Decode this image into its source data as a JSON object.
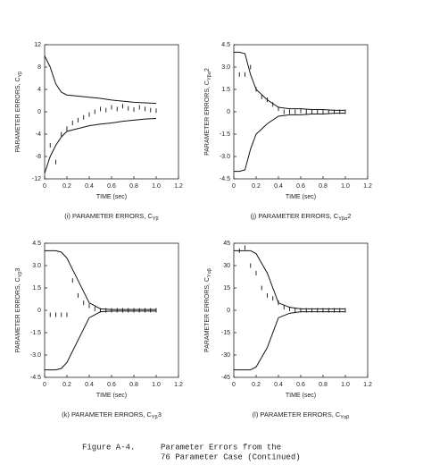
{
  "chart_data": [
    {
      "type": "line",
      "ylabel": "PARAMETER ERRORS, C",
      "ylabel_sub": "Yβ",
      "xlabel": "TIME (sec)",
      "caption": "(i) PARAMETER ERRORS, C",
      "caption_sub": "Yβ",
      "xlim": [
        0,
        1.2
      ],
      "xticks": [
        0,
        0.2,
        0.4,
        0.6,
        0.8,
        {
          "value": 1,
          "label": "1.0"
        },
        1.2
      ],
      "ylim": [
        -12,
        12
      ],
      "yticks": [
        -12,
        -8,
        -4,
        0,
        4,
        8,
        12
      ],
      "series": [
        {
          "style": "line",
          "color": "#111",
          "x": [
            0,
            0.05,
            0.1,
            0.15,
            0.2,
            0.3,
            0.4,
            0.5,
            0.6,
            0.7,
            0.8,
            0.9,
            1.0
          ],
          "values": [
            10,
            8,
            5,
            3.5,
            3,
            2.8,
            2.6,
            2.4,
            2.1,
            1.9,
            1.7,
            1.6,
            1.5
          ]
        },
        {
          "style": "line",
          "color": "#111",
          "x": [
            0,
            0.05,
            0.1,
            0.15,
            0.2,
            0.3,
            0.4,
            0.5,
            0.6,
            0.7,
            0.8,
            0.9,
            1.0
          ],
          "values": [
            -11,
            -8,
            -6,
            -4.5,
            -3.5,
            -3,
            -2.5,
            -2.2,
            -2,
            -1.7,
            -1.5,
            -1.3,
            -1.2
          ]
        },
        {
          "style": "points",
          "color": "#111",
          "x": [
            0.05,
            0.1,
            0.15,
            0.2,
            0.25,
            0.3,
            0.35,
            0.4,
            0.45,
            0.5,
            0.55,
            0.6,
            0.65,
            0.7,
            0.75,
            0.8,
            0.85,
            0.9,
            0.95,
            1.0
          ],
          "values": [
            -6,
            -9,
            -4,
            -3,
            -2,
            -1.5,
            -1,
            -0.5,
            0,
            0.5,
            0.3,
            0.8,
            0.5,
            1,
            0.6,
            0.4,
            0.8,
            0.5,
            0.3,
            0.2
          ]
        }
      ]
    },
    {
      "type": "line",
      "ylabel": "PARAMETER ERRORS, C",
      "ylabel_sub": "Yβα",
      "ylabel_tail": "2",
      "xlabel": "TIME (sec)",
      "caption": "(j) PARAMETER ERRORS, C",
      "caption_sub": "Yβα",
      "caption_tail": "2",
      "xlim": [
        0,
        1.2
      ],
      "xticks": [
        0,
        0.2,
        0.4,
        0.6,
        0.8,
        {
          "value": 1,
          "label": "1.0"
        },
        1.2
      ],
      "ylim": [
        -4.5,
        4.5
      ],
      "yticks": [
        -4.5,
        {
          "value": -3,
          "label": "-3.0"
        },
        -1.5,
        0,
        1.5,
        {
          "value": 3,
          "label": "3.0"
        },
        4.5
      ],
      "series": [
        {
          "style": "line",
          "color": "#111",
          "x": [
            0,
            0.05,
            0.1,
            0.15,
            0.2,
            0.3,
            0.4,
            0.5,
            0.6,
            0.7,
            0.8,
            0.9,
            1.0
          ],
          "values": [
            4,
            4,
            3.9,
            2.5,
            1.5,
            0.8,
            0.3,
            0.2,
            0.2,
            0.15,
            0.15,
            0.1,
            0.1
          ]
        },
        {
          "style": "line",
          "color": "#111",
          "x": [
            0,
            0.05,
            0.1,
            0.15,
            0.2,
            0.3,
            0.4,
            0.5,
            0.6,
            0.7,
            0.8,
            0.9,
            1.0
          ],
          "values": [
            -4,
            -4,
            -3.9,
            -2.5,
            -1.5,
            -0.8,
            -0.3,
            -0.2,
            -0.2,
            -0.15,
            -0.15,
            -0.1,
            -0.1
          ]
        },
        {
          "style": "points",
          "color": "#111",
          "x": [
            0.05,
            0.1,
            0.15,
            0.2,
            0.25,
            0.3,
            0.35,
            0.4,
            0.45,
            0.5,
            0.55,
            0.6,
            0.65,
            0.7,
            0.75,
            0.8,
            0.85,
            0.9,
            0.95,
            1.0
          ],
          "values": [
            2.5,
            2.5,
            3,
            1.5,
            1,
            0.8,
            0.5,
            0.2,
            0,
            0,
            0,
            0.05,
            0,
            0,
            0,
            0,
            0,
            0,
            0,
            0
          ]
        }
      ]
    },
    {
      "type": "line",
      "ylabel": "PARAMETER ERRORS, C",
      "ylabel_sub": "Yβ",
      "ylabel_tail": "3",
      "xlabel": "TIME (sec)",
      "caption": "(k) PARAMETER ERRORS, C",
      "caption_sub": "Yβ",
      "caption_tail": "3",
      "xlim": [
        0,
        1.2
      ],
      "xticks": [
        0,
        0.2,
        0.4,
        0.6,
        0.8,
        {
          "value": 1,
          "label": "1.0"
        },
        1.2
      ],
      "ylim": [
        -4.5,
        4.5
      ],
      "yticks": [
        -4.5,
        {
          "value": -3,
          "label": "-3.0"
        },
        -1.5,
        0,
        1.5,
        {
          "value": 3,
          "label": "3.0"
        },
        4.5
      ],
      "series": [
        {
          "style": "line",
          "color": "#111",
          "x": [
            0,
            0.05,
            0.1,
            0.15,
            0.2,
            0.3,
            0.4,
            0.5,
            0.6,
            0.7,
            0.8,
            0.9,
            1.0
          ],
          "values": [
            4,
            4,
            4,
            3.9,
            3.5,
            2,
            0.5,
            0.1,
            0.05,
            0.05,
            0.05,
            0.05,
            0.05
          ]
        },
        {
          "style": "line",
          "color": "#111",
          "x": [
            0,
            0.05,
            0.1,
            0.15,
            0.2,
            0.3,
            0.4,
            0.5,
            0.6,
            0.7,
            0.8,
            0.9,
            1.0
          ],
          "values": [
            -4,
            -4,
            -4,
            -3.9,
            -3.5,
            -2,
            -0.5,
            -0.1,
            -0.05,
            -0.05,
            -0.05,
            -0.05,
            -0.05
          ]
        },
        {
          "style": "points",
          "color": "#111",
          "x": [
            0.05,
            0.1,
            0.15,
            0.2,
            0.25,
            0.3,
            0.35,
            0.4,
            0.45,
            0.5,
            0.55,
            0.6,
            0.65,
            0.7,
            0.75,
            0.8,
            0.85,
            0.9,
            0.95,
            1.0
          ],
          "values": [
            -0.3,
            -0.3,
            -0.3,
            -0.3,
            2,
            1,
            0.5,
            0.3,
            0.1,
            0,
            0,
            0,
            0,
            0,
            0,
            0,
            0,
            0,
            0,
            0
          ]
        }
      ]
    },
    {
      "type": "line",
      "ylabel": "PARAMETER ERRORS, C",
      "ylabel_sub": "Yαβ",
      "xlabel": "TIME (sec)",
      "caption": "(l) PARAMETER ERRORS, C",
      "caption_sub": "Yαβ",
      "xlim": [
        0,
        1.2
      ],
      "xticks": [
        0,
        0.2,
        0.4,
        0.6,
        0.8,
        {
          "value": 1,
          "label": "1.0"
        },
        1.2
      ],
      "ylim": [
        -45,
        45
      ],
      "yticks": [
        -45,
        -30,
        -15,
        0,
        15,
        30,
        45
      ],
      "series": [
        {
          "style": "line",
          "color": "#111",
          "x": [
            0,
            0.05,
            0.1,
            0.15,
            0.2,
            0.3,
            0.4,
            0.5,
            0.6,
            0.7,
            0.8,
            0.9,
            1.0
          ],
          "values": [
            40,
            40,
            40,
            40,
            38,
            25,
            5,
            2,
            1,
            1,
            1,
            1,
            1
          ]
        },
        {
          "style": "line",
          "color": "#111",
          "x": [
            0,
            0.05,
            0.1,
            0.15,
            0.2,
            0.3,
            0.4,
            0.5,
            0.6,
            0.7,
            0.8,
            0.9,
            1.0
          ],
          "values": [
            -40,
            -40,
            -40,
            -40,
            -38,
            -25,
            -5,
            -2,
            -1,
            -1,
            -1,
            -1,
            -1
          ]
        },
        {
          "style": "points",
          "color": "#111",
          "x": [
            0.05,
            0.1,
            0.15,
            0.2,
            0.25,
            0.3,
            0.35,
            0.4,
            0.45,
            0.5,
            0.55,
            0.6,
            0.65,
            0.7,
            0.75,
            0.8,
            0.85,
            0.9,
            0.95,
            1.0
          ],
          "values": [
            40,
            42,
            30,
            25,
            15,
            10,
            8,
            5,
            2,
            1,
            0,
            0,
            0,
            0,
            0,
            0,
            0,
            0,
            0,
            0
          ]
        }
      ]
    }
  ],
  "figure_caption": {
    "label": "Figure A-4.",
    "line1": "Parameter Errors from the",
    "line2": "76 Parameter Case (Continued)"
  }
}
